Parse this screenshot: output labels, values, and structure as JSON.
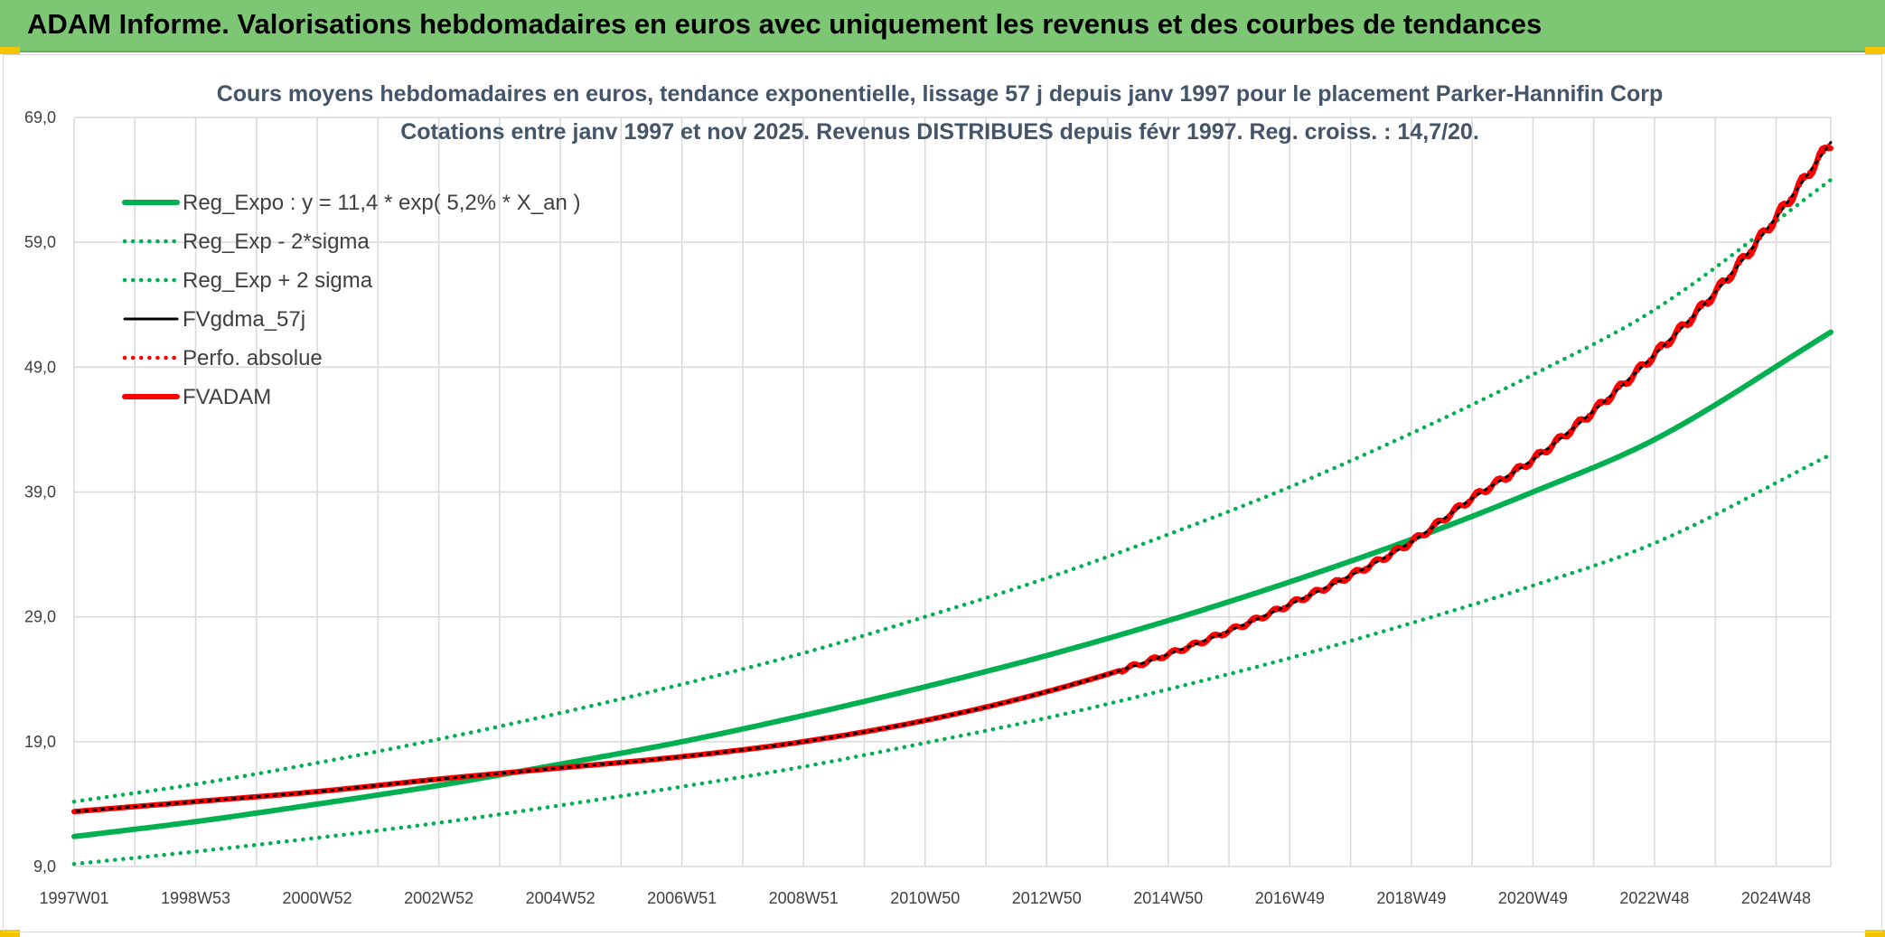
{
  "header": {
    "title": "ADAM Informe. Valorisations hebdomadaires en euros avec uniquement les revenus et des courbes de tendances",
    "background": "#7dc774"
  },
  "chart_data": {
    "type": "line",
    "title": "Cours moyens hebdomadaires en euros, tendance exponentielle, lissage 57 j depuis janv 1997 pour le placement Parker-Hannifin Corp",
    "subtitle": "Cotations entre janv 1997 et nov 2025. Revenus DISTRIBUES depuis févr 1997. Reg. croiss. : 14,7/20.",
    "xlabel": "",
    "ylabel": "",
    "ylim": [
      9.0,
      69.0
    ],
    "xlim": [
      1997.0,
      2025.9
    ],
    "y_ticks": [
      "9,0",
      "19,0",
      "29,0",
      "39,0",
      "49,0",
      "59,0",
      "69,0"
    ],
    "x_ticks": [
      "1997W01",
      "1998W53",
      "2000W52",
      "2002W52",
      "2004W52",
      "2006W51",
      "2008W51",
      "2010W50",
      "2012W50",
      "2014W50",
      "2016W49",
      "2018W49",
      "2020W49",
      "2022W48",
      "2024W48"
    ],
    "x_tick_positions": [
      1997.0,
      1999.0,
      2001.0,
      2003.0,
      2005.0,
      2007.0,
      2009.0,
      2011.0,
      2013.0,
      2015.0,
      2017.0,
      2019.0,
      2021.0,
      2023.0,
      2025.0
    ],
    "grid": true,
    "legend_position": "top-left",
    "series": [
      {
        "name": "Reg_Expo : y = 11,4 * exp( 5,2% *  X_an )",
        "color": "#00b050",
        "style": "solid-thick",
        "x": [
          1997,
          1999,
          2001,
          2003,
          2005,
          2007,
          2009,
          2011,
          2013,
          2015,
          2017,
          2019,
          2021,
          2023,
          2025.9
        ],
        "y": [
          11.4,
          12.6,
          14.0,
          15.5,
          17.2,
          19.0,
          21.1,
          23.4,
          25.9,
          28.7,
          31.8,
          35.2,
          39.0,
          43.2,
          51.8
        ]
      },
      {
        "name": "Reg_Exp - 2*sigma",
        "color": "#00b050",
        "style": "dotted",
        "x": [
          1997,
          1999,
          2001,
          2003,
          2005,
          2007,
          2009,
          2011,
          2013,
          2015,
          2017,
          2019,
          2021,
          2023,
          2025.9
        ],
        "y": [
          9.2,
          10.2,
          11.3,
          12.5,
          13.9,
          15.4,
          17.0,
          18.9,
          20.9,
          23.2,
          25.7,
          28.5,
          31.5,
          34.9,
          42.0
        ]
      },
      {
        "name": "Reg_Exp + 2 sigma",
        "color": "#00b050",
        "style": "dotted",
        "x": [
          1997,
          1999,
          2001,
          2003,
          2005,
          2007,
          2009,
          2011,
          2013,
          2015,
          2017,
          2019,
          2021,
          2023,
          2025.9
        ],
        "y": [
          14.2,
          15.6,
          17.3,
          19.2,
          21.3,
          23.6,
          26.1,
          29.0,
          32.1,
          35.6,
          39.4,
          43.7,
          48.4,
          53.6,
          64.0
        ]
      },
      {
        "name": "FVgdma_57j",
        "color": "#000000",
        "style": "solid",
        "x": [
          1997,
          1999,
          2001,
          2003,
          2005,
          2007,
          2009,
          2011,
          2013,
          2015,
          2017,
          2019,
          2020,
          2021,
          2022,
          2023,
          2024,
          2025,
          2025.9
        ],
        "y": [
          13.4,
          14.2,
          15.0,
          16.0,
          16.9,
          17.8,
          19.0,
          20.7,
          23.0,
          26.0,
          30.0,
          35.0,
          38.5,
          41.6,
          45.5,
          50.0,
          55.0,
          61.0,
          67.0
        ]
      },
      {
        "name": "Perfo. absolue",
        "color": "#ff0000",
        "style": "dotted",
        "x": [
          1997,
          1999,
          2001,
          2003,
          2005,
          2007,
          2009,
          2011,
          2013,
          2015,
          2017,
          2019,
          2020,
          2021,
          2022,
          2023,
          2024,
          2025,
          2025.9
        ],
        "y": [
          13.4,
          14.2,
          15.0,
          16.0,
          16.9,
          17.8,
          19.0,
          20.7,
          23.0,
          26.0,
          30.0,
          35.0,
          38.5,
          41.6,
          45.5,
          50.0,
          55.0,
          61.0,
          67.0
        ]
      },
      {
        "name": "FVADAM",
        "color": "#ff0000",
        "style": "solid-thick",
        "x": [
          1997,
          1999,
          2001,
          2003,
          2005,
          2007,
          2009,
          2011,
          2013,
          2015,
          2017,
          2019,
          2020,
          2021,
          2022,
          2023,
          2024,
          2025,
          2025.9
        ],
        "y": [
          13.4,
          14.2,
          15.0,
          16.0,
          16.9,
          17.8,
          19.0,
          20.7,
          23.0,
          26.0,
          30.0,
          35.0,
          38.5,
          41.6,
          45.5,
          50.0,
          55.0,
          61.0,
          67.0
        ]
      }
    ]
  }
}
